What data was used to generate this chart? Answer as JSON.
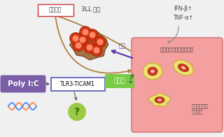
{
  "bg_color": "#f0f0f0",
  "poly_ic_box_color": "#7b5ea7",
  "poly_ic_text": "Poly I:C",
  "poly_ic_text_color": "#ffffff",
  "tlr_box_color": "#ffffff",
  "tlr_border_color": "#5555bb",
  "tlr_text": "TLR3-TICAM1",
  "tumor_tissue_box_color": "#ffffff",
  "tumor_tissue_border_color": "#cc4444",
  "tumor_tissue_text": "腫瘍組織",
  "tumor_3ll_text": "3LL 腫瘍",
  "korosu_text": "殺す",
  "korosu_color": "#5533aa",
  "kasseika_text": "活性化",
  "kasseika_box_color": "#77cc44",
  "kasseika_text_color": "#ffffff",
  "macro_box_color": "#f5a0a0",
  "macro_title": "腫瘍浸潤マクロファージ",
  "macro_sub": "腫瘍内にたく\nさん居る",
  "ifn_text": "IFN-β↑\nTNF-α↑",
  "question_color": "#99cc44",
  "arrow_brown": "#b08040",
  "arrow_purple": "#5533aa",
  "arrow_gray": "#888888",
  "dna_color1": "#ff8844",
  "dna_color2": "#4488ff",
  "blob_color": "#8B5A2B",
  "blob_edge": "#6B3A1B",
  "cell_outer": "#cc3311",
  "cell_inner": "#ff7755"
}
